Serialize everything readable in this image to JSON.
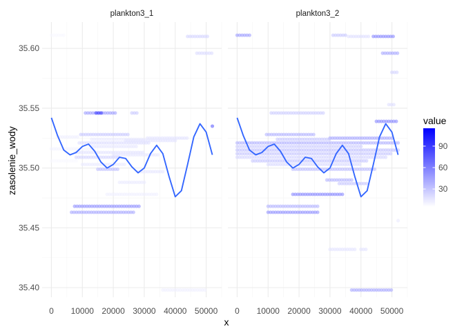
{
  "chart_data": {
    "type": "scatter",
    "xlabel": "x",
    "ylabel": "zasolenie_wody",
    "xlim": [
      -3000,
      55000
    ],
    "ylim": [
      35.392,
      35.622
    ],
    "x_ticks": [
      0,
      10000,
      20000,
      30000,
      40000,
      50000
    ],
    "x_tick_labels": [
      "0",
      "10000",
      "20000",
      "30000",
      "40000",
      "50000"
    ],
    "y_ticks": [
      35.4,
      35.45,
      35.5,
      35.55,
      35.6
    ],
    "y_tick_labels": [
      "35.40",
      "35.45",
      "35.50",
      "35.55",
      "35.60"
    ],
    "grid": true,
    "legend": {
      "title": "value",
      "position": "right",
      "range": [
        5,
        115
      ],
      "ticks": [
        30,
        60,
        90
      ],
      "tick_labels": [
        "30",
        "60",
        "90"
      ],
      "low_color": "#ffffff",
      "high_color": "#0000ff"
    },
    "smooth_color": "#3366ff",
    "smooth_curve": {
      "x": [
        0,
        2000,
        4000,
        6000,
        8000,
        10000,
        12000,
        14000,
        16000,
        18000,
        20000,
        22000,
        24000,
        26000,
        28000,
        30000,
        32000,
        34000,
        36000,
        38000,
        40000,
        42000,
        44000,
        46000,
        48000,
        50000,
        52000
      ],
      "y": [
        35.542,
        35.527,
        35.515,
        35.511,
        35.513,
        35.518,
        35.52,
        35.514,
        35.505,
        35.5,
        35.503,
        35.509,
        35.508,
        35.501,
        35.496,
        35.5,
        35.512,
        35.519,
        35.512,
        35.493,
        35.476,
        35.481,
        35.503,
        35.526,
        35.537,
        35.53,
        35.511
      ]
    },
    "panels": [
      {
        "name": "plankton3_1",
        "segments": [
          {
            "y": 35.611,
            "x_start": 0,
            "x_end": 4000,
            "value": 8
          },
          {
            "y": 35.61,
            "x_start": 44000,
            "x_end": 51000,
            "value": 25
          },
          {
            "y": 35.596,
            "x_start": 47000,
            "x_end": 52000,
            "value": 22
          },
          {
            "y": 35.546,
            "x_start": 11000,
            "x_end": 21000,
            "value": 50
          },
          {
            "y": 35.546,
            "x_start": 14500,
            "x_end": 16500,
            "value": 90
          },
          {
            "y": 35.546,
            "x_start": 26000,
            "x_end": 28000,
            "value": 30
          },
          {
            "y": 35.535,
            "x_start": 52000,
            "x_end": 52000,
            "value": 80
          },
          {
            "y": 35.528,
            "x_start": 9500,
            "x_end": 25000,
            "value": 30
          },
          {
            "y": 35.526,
            "x_start": 2000,
            "x_end": 9000,
            "value": 12
          },
          {
            "y": 35.525,
            "x_start": 31000,
            "x_end": 44000,
            "value": 18
          },
          {
            "y": 35.524,
            "x_start": 13000,
            "x_end": 30000,
            "value": 14
          },
          {
            "y": 35.523,
            "x_start": 24000,
            "x_end": 40000,
            "value": 18
          },
          {
            "y": 35.521,
            "x_start": 9000,
            "x_end": 32000,
            "value": 20
          },
          {
            "y": 35.518,
            "x_start": 13000,
            "x_end": 28000,
            "value": 16
          },
          {
            "y": 35.516,
            "x_start": 0,
            "x_end": 14000,
            "value": 10
          },
          {
            "y": 35.513,
            "x_start": 8000,
            "x_end": 30000,
            "value": 18
          },
          {
            "y": 35.511,
            "x_start": 20000,
            "x_end": 35000,
            "value": 16
          },
          {
            "y": 35.509,
            "x_start": 8000,
            "x_end": 22000,
            "value": 24
          },
          {
            "y": 35.506,
            "x_start": 0,
            "x_end": 8000,
            "value": 8
          },
          {
            "y": 35.503,
            "x_start": 10000,
            "x_end": 24000,
            "value": 14
          },
          {
            "y": 35.499,
            "x_start": 15000,
            "x_end": 22000,
            "value": 35
          },
          {
            "y": 35.497,
            "x_start": 28000,
            "x_end": 36000,
            "value": 16
          },
          {
            "y": 35.488,
            "x_start": 22000,
            "x_end": 30000,
            "value": 14
          },
          {
            "y": 35.478,
            "x_start": 18000,
            "x_end": 34000,
            "value": 12
          },
          {
            "y": 35.468,
            "x_start": 7500,
            "x_end": 29000,
            "value": 55
          },
          {
            "y": 35.463,
            "x_start": 6500,
            "x_end": 27000,
            "value": 45
          },
          {
            "y": 35.398,
            "x_start": 36000,
            "x_end": 50000,
            "value": 12
          }
        ]
      },
      {
        "name": "plankton3_2",
        "segments": [
          {
            "y": 35.611,
            "x_start": 0,
            "x_end": 4000,
            "value": 50
          },
          {
            "y": 35.611,
            "x_start": 31000,
            "x_end": 35000,
            "value": 30
          },
          {
            "y": 35.61,
            "x_start": 36000,
            "x_end": 43000,
            "value": 20
          },
          {
            "y": 35.61,
            "x_start": 44000,
            "x_end": 51000,
            "value": 60
          },
          {
            "y": 35.596,
            "x_start": 47000,
            "x_end": 52000,
            "value": 45
          },
          {
            "y": 35.58,
            "x_start": 50000,
            "x_end": 52000,
            "value": 25
          },
          {
            "y": 35.553,
            "x_start": 49000,
            "x_end": 51000,
            "value": 20
          },
          {
            "y": 35.546,
            "x_start": 11000,
            "x_end": 28000,
            "value": 28
          },
          {
            "y": 35.539,
            "x_start": 45000,
            "x_end": 52000,
            "value": 60
          },
          {
            "y": 35.528,
            "x_start": 9500,
            "x_end": 25000,
            "value": 40
          },
          {
            "y": 35.525,
            "x_start": 30000,
            "x_end": 50000,
            "value": 45
          },
          {
            "y": 35.524,
            "x_start": 13000,
            "x_end": 30000,
            "value": 30
          },
          {
            "y": 35.521,
            "x_start": 0,
            "x_end": 52000,
            "value": 40
          },
          {
            "y": 35.518,
            "x_start": 0,
            "x_end": 40000,
            "value": 28
          },
          {
            "y": 35.515,
            "x_start": 0,
            "x_end": 52000,
            "value": 32
          },
          {
            "y": 35.512,
            "x_start": 0,
            "x_end": 50000,
            "value": 30
          },
          {
            "y": 35.509,
            "x_start": 0,
            "x_end": 48000,
            "value": 24
          },
          {
            "y": 35.506,
            "x_start": 5000,
            "x_end": 42000,
            "value": 30
          },
          {
            "y": 35.503,
            "x_start": 10000,
            "x_end": 40000,
            "value": 22
          },
          {
            "y": 35.499,
            "x_start": 18000,
            "x_end": 45000,
            "value": 35
          },
          {
            "y": 35.49,
            "x_start": 29000,
            "x_end": 37000,
            "value": 40
          },
          {
            "y": 35.487,
            "x_start": 33000,
            "x_end": 42000,
            "value": 30
          },
          {
            "y": 35.478,
            "x_start": 18000,
            "x_end": 34000,
            "value": 60
          },
          {
            "y": 35.468,
            "x_start": 10000,
            "x_end": 26000,
            "value": 40
          },
          {
            "y": 35.463,
            "x_start": 10000,
            "x_end": 26000,
            "value": 55
          },
          {
            "y": 35.456,
            "x_start": 52000,
            "x_end": 52000,
            "value": 15
          },
          {
            "y": 35.432,
            "x_start": 30000,
            "x_end": 38000,
            "value": 18
          },
          {
            "y": 35.432,
            "x_start": 40000,
            "x_end": 42000,
            "value": 18
          },
          {
            "y": 35.398,
            "x_start": 37000,
            "x_end": 50000,
            "value": 45
          }
        ]
      }
    ]
  }
}
